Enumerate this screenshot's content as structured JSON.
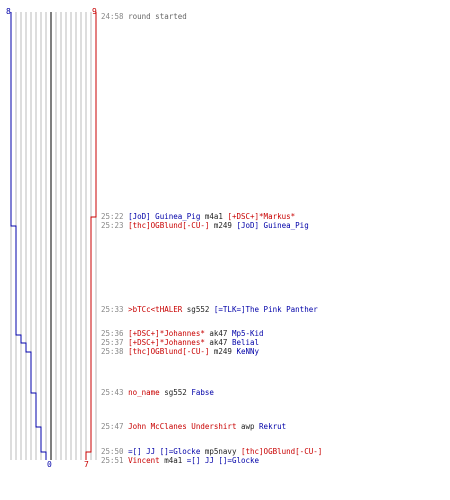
{
  "colors": {
    "team_blue": "#0000a8",
    "team_red": "#c80000",
    "timestamp": "#888888",
    "grid": "#bbbbbb",
    "center": "#555555"
  },
  "scores": {
    "blue_top": "8",
    "red_top": "9",
    "blue_bottom": "0",
    "red_bottom": "7"
  },
  "events": [
    {
      "time": "24:58",
      "text": "round started"
    },
    {
      "time": "25:22",
      "killer": "[JoD] Guinea_Pig",
      "killer_team": "blue",
      "weapon": "m4a1",
      "victim": "[+DSC+]*Markus*",
      "victim_team": "red"
    },
    {
      "time": "25:23",
      "killer": "[thc]OGBlund[-CU-]",
      "killer_team": "red",
      "weapon": "m249",
      "victim": "[JoD] Guinea_Pig",
      "victim_team": "blue"
    },
    {
      "time": "25:33",
      "killer": ">bTCc<tHALER",
      "killer_team": "red",
      "weapon": "sg552",
      "victim": "[=TLK=]The Pink Panther",
      "victim_team": "blue"
    },
    {
      "time": "25:36",
      "killer": "[+DSC+]*Johannes*",
      "killer_team": "red",
      "weapon": "ak47",
      "victim": "Mp5-Kid",
      "victim_team": "blue"
    },
    {
      "time": "25:37",
      "killer": "[+DSC+]*Johannes*",
      "killer_team": "red",
      "weapon": "ak47",
      "victim": "Belial",
      "victim_team": "blue"
    },
    {
      "time": "25:38",
      "killer": "[thc]OGBlund[-CU-]",
      "killer_team": "red",
      "weapon": "m249",
      "victim": "KeNNy",
      "victim_team": "blue"
    },
    {
      "time": "25:43",
      "killer": "no_name",
      "killer_team": "red",
      "weapon": "sg552",
      "victim": "Fabse",
      "victim_team": "blue"
    },
    {
      "time": "25:47",
      "killer": "John McClanes Undershirt",
      "killer_team": "red",
      "weapon": "awp",
      "victim": "Rekrut",
      "victim_team": "blue"
    },
    {
      "time": "25:50",
      "killer": "=[] JJ []=Glocke",
      "killer_team": "blue",
      "weapon": "mp5navy",
      "victim": "[thc]OGBlund[-CU-]",
      "victim_team": "red"
    },
    {
      "time": "25:51",
      "killer": "Vincent",
      "killer_team": "red",
      "weapon": "m4a1",
      "victim": "=[] JJ []=Glocke",
      "victim_team": "blue"
    }
  ]
}
